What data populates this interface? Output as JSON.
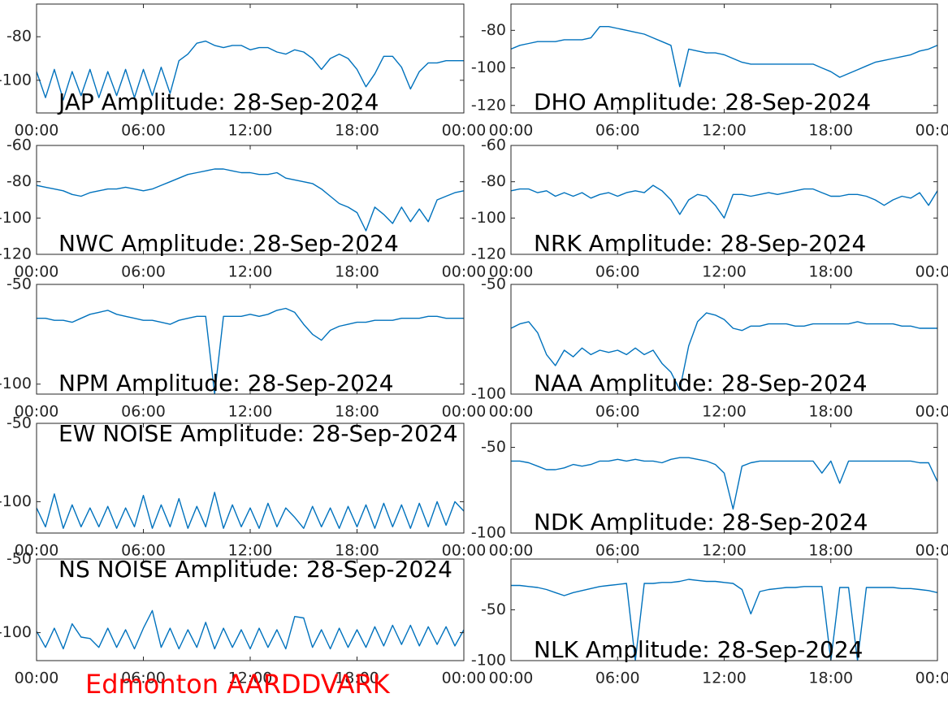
{
  "chart_data": [
    {
      "type": "line",
      "title": "JAP Amplitude: 28-Sep-2024",
      "color": "#0072bd",
      "xlim": [
        0,
        24
      ],
      "ylim": [
        -115,
        -65
      ],
      "yticks": [
        -80,
        -100
      ],
      "xticks": [
        {
          "value": 0,
          "label": "00:00"
        },
        {
          "value": 6,
          "label": "06:00"
        },
        {
          "value": 12,
          "label": "12:00"
        },
        {
          "value": 18,
          "label": "18:00"
        },
        {
          "value": 24,
          "label": "00:00"
        }
      ],
      "x": [
        0,
        0.5,
        1,
        1.5,
        2,
        2.5,
        3,
        3.5,
        4,
        4.5,
        5,
        5.5,
        6,
        6.5,
        7,
        7.5,
        8,
        8.5,
        9,
        9.5,
        10,
        10.5,
        11,
        11.5,
        12,
        12.5,
        13,
        13.5,
        14,
        14.5,
        15,
        15.5,
        16,
        16.5,
        17,
        17.5,
        18,
        18.5,
        19,
        19.5,
        20,
        20.5,
        21,
        21.5,
        22,
        22.5,
        23,
        23.5,
        24
      ],
      "values": [
        -96,
        -108,
        -95,
        -109,
        -96,
        -107,
        -95,
        -108,
        -96,
        -107,
        -95,
        -108,
        -95,
        -107,
        -94,
        -106,
        -91,
        -88,
        -83,
        -82,
        -84,
        -85,
        -84,
        -84,
        -86,
        -85,
        -85,
        -87,
        -88,
        -86,
        -87,
        -90,
        -95,
        -90,
        -88,
        -90,
        -95,
        -103,
        -97,
        -89,
        -89,
        -94,
        -104,
        -96,
        -92,
        -92,
        -91,
        -91,
        -91
      ]
    },
    {
      "type": "line",
      "title": "DHO Amplitude: 28-Sep-2024",
      "color": "#0072bd",
      "xlim": [
        0,
        24
      ],
      "ylim": [
        -124,
        -66
      ],
      "yticks": [
        -80,
        -100,
        -120
      ],
      "xticks": [
        {
          "value": 0,
          "label": "00:00"
        },
        {
          "value": 6,
          "label": "06:00"
        },
        {
          "value": 12,
          "label": "12:00"
        },
        {
          "value": 18,
          "label": "18:00"
        },
        {
          "value": 24,
          "label": "00:00"
        }
      ],
      "x": [
        0,
        0.5,
        1,
        1.5,
        2,
        2.5,
        3,
        3.5,
        4,
        4.5,
        5,
        5.5,
        6,
        6.5,
        7,
        7.5,
        8,
        8.5,
        9,
        9.5,
        10,
        10.5,
        11,
        11.5,
        12,
        12.5,
        13,
        13.5,
        14,
        14.5,
        15,
        15.5,
        16,
        16.5,
        17,
        17.5,
        18,
        18.5,
        19,
        19.5,
        20,
        20.5,
        21,
        21.5,
        22,
        22.5,
        23,
        23.5,
        24
      ],
      "values": [
        -90,
        -88,
        -87,
        -86,
        -86,
        -86,
        -85,
        -85,
        -85,
        -84,
        -78,
        -78,
        -79,
        -80,
        -81,
        -82,
        -84,
        -86,
        -88,
        -110,
        -90,
        -91,
        -92,
        -92,
        -93,
        -95,
        -97,
        -98,
        -98,
        -98,
        -98,
        -98,
        -98,
        -98,
        -98,
        -100,
        -102,
        -105,
        -103,
        -101,
        -99,
        -97,
        -96,
        -95,
        -94,
        -93,
        -91,
        -90,
        -88
      ]
    },
    {
      "type": "line",
      "title": "NWC Amplitude: 28-Sep-2024",
      "color": "#0072bd",
      "xlim": [
        0,
        24
      ],
      "ylim": [
        -120,
        -60
      ],
      "yticks": [
        -60,
        -80,
        -100,
        -120
      ],
      "xticks": [
        {
          "value": 0,
          "label": "00:00"
        },
        {
          "value": 6,
          "label": "06:00"
        },
        {
          "value": 12,
          "label": "12:00"
        },
        {
          "value": 18,
          "label": "18:00"
        },
        {
          "value": 24,
          "label": "00:00"
        }
      ],
      "x": [
        0,
        0.5,
        1,
        1.5,
        2,
        2.5,
        3,
        3.5,
        4,
        4.5,
        5,
        5.5,
        6,
        6.5,
        7,
        7.5,
        8,
        8.5,
        9,
        9.5,
        10,
        10.5,
        11,
        11.5,
        12,
        12.5,
        13,
        13.5,
        14,
        14.5,
        15,
        15.5,
        16,
        16.5,
        17,
        17.5,
        18,
        18.5,
        19,
        19.5,
        20,
        20.5,
        21,
        21.5,
        22,
        22.5,
        23,
        23.5,
        24
      ],
      "values": [
        -82,
        -83,
        -84,
        -85,
        -87,
        -88,
        -86,
        -85,
        -84,
        -84,
        -83,
        -84,
        -85,
        -84,
        -82,
        -80,
        -78,
        -76,
        -75,
        -74,
        -73,
        -73,
        -74,
        -75,
        -75,
        -76,
        -76,
        -75,
        -78,
        -79,
        -80,
        -81,
        -84,
        -88,
        -92,
        -94,
        -97,
        -107,
        -94,
        -98,
        -103,
        -94,
        -102,
        -95,
        -102,
        -90,
        -88,
        -86,
        -85
      ]
    },
    {
      "type": "line",
      "title": "NRK Amplitude: 28-Sep-2024",
      "color": "#0072bd",
      "xlim": [
        0,
        24
      ],
      "ylim": [
        -120,
        -60
      ],
      "yticks": [
        -60,
        -80,
        -100,
        -120
      ],
      "xticks": [
        {
          "value": 0,
          "label": "00:00"
        },
        {
          "value": 6,
          "label": "06:00"
        },
        {
          "value": 12,
          "label": "12:00"
        },
        {
          "value": 18,
          "label": "18:00"
        },
        {
          "value": 24,
          "label": "00:00"
        }
      ],
      "x": [
        0,
        0.5,
        1,
        1.5,
        2,
        2.5,
        3,
        3.5,
        4,
        4.5,
        5,
        5.5,
        6,
        6.5,
        7,
        7.5,
        8,
        8.5,
        9,
        9.5,
        10,
        10.5,
        11,
        11.5,
        12,
        12.5,
        13,
        13.5,
        14,
        14.5,
        15,
        15.5,
        16,
        16.5,
        17,
        17.5,
        18,
        18.5,
        19,
        19.5,
        20,
        20.5,
        21,
        21.5,
        22,
        22.5,
        23,
        23.5,
        24
      ],
      "values": [
        -85,
        -84,
        -84,
        -86,
        -85,
        -88,
        -86,
        -88,
        -86,
        -89,
        -87,
        -86,
        -88,
        -86,
        -85,
        -86,
        -82,
        -85,
        -90,
        -98,
        -90,
        -87,
        -88,
        -93,
        -100,
        -87,
        -87,
        -88,
        -87,
        -86,
        -87,
        -86,
        -85,
        -84,
        -84,
        -86,
        -88,
        -88,
        -87,
        -87,
        -88,
        -90,
        -93,
        -90,
        -88,
        -89,
        -86,
        -93,
        -85
      ]
    },
    {
      "type": "line",
      "title": "NPM Amplitude: 28-Sep-2024",
      "color": "#0072bd",
      "xlim": [
        0,
        24
      ],
      "ylim": [
        -105,
        -50
      ],
      "yticks": [
        -50,
        -100
      ],
      "xticks": [
        {
          "value": 0,
          "label": "00:00"
        },
        {
          "value": 6,
          "label": "06:00"
        },
        {
          "value": 12,
          "label": "12:00"
        },
        {
          "value": 18,
          "label": "18:00"
        },
        {
          "value": 24,
          "label": "00:00"
        }
      ],
      "x": [
        0,
        0.5,
        1,
        1.5,
        2,
        2.5,
        3,
        3.5,
        4,
        4.5,
        5,
        5.5,
        6,
        6.5,
        7,
        7.5,
        8,
        8.5,
        9,
        9.5,
        10,
        10.5,
        11,
        11.5,
        12,
        12.5,
        13,
        13.5,
        14,
        14.5,
        15,
        15.5,
        16,
        16.5,
        17,
        17.5,
        18,
        18.5,
        19,
        19.5,
        20,
        20.5,
        21,
        21.5,
        22,
        22.5,
        23,
        23.5,
        24
      ],
      "values": [
        -67,
        -67,
        -68,
        -68,
        -69,
        -67,
        -65,
        -64,
        -63,
        -65,
        -66,
        -67,
        -68,
        -68,
        -69,
        -70,
        -68,
        -67,
        -66,
        -66,
        -105,
        -66,
        -66,
        -66,
        -65,
        -66,
        -65,
        -63,
        -62,
        -64,
        -70,
        -75,
        -78,
        -73,
        -71,
        -70,
        -69,
        -69,
        -68,
        -68,
        -68,
        -67,
        -67,
        -67,
        -66,
        -66,
        -67,
        -67,
        -67
      ]
    },
    {
      "type": "line",
      "title": "NAA Amplitude: 28-Sep-2024",
      "color": "#0072bd",
      "xlim": [
        0,
        24
      ],
      "ylim": [
        -100,
        -50
      ],
      "yticks": [
        -50,
        -100
      ],
      "xticks": [
        {
          "value": 0,
          "label": "00:00"
        },
        {
          "value": 6,
          "label": "06:00"
        },
        {
          "value": 12,
          "label": "12:00"
        },
        {
          "value": 18,
          "label": "18:00"
        },
        {
          "value": 24,
          "label": "00:00"
        }
      ],
      "x": [
        0,
        0.5,
        1,
        1.5,
        2,
        2.5,
        3,
        3.5,
        4,
        4.5,
        5,
        5.5,
        6,
        6.5,
        7,
        7.5,
        8,
        8.5,
        9,
        9.5,
        10,
        10.5,
        11,
        11.5,
        12,
        12.5,
        13,
        13.5,
        14,
        14.5,
        15,
        15.5,
        16,
        16.5,
        17,
        17.5,
        18,
        18.5,
        19,
        19.5,
        20,
        20.5,
        21,
        21.5,
        22,
        22.5,
        23,
        23.5,
        24
      ],
      "values": [
        -70,
        -68,
        -67,
        -72,
        -82,
        -87,
        -80,
        -83,
        -79,
        -82,
        -80,
        -81,
        -80,
        -82,
        -79,
        -82,
        -80,
        -86,
        -90,
        -98,
        -78,
        -67,
        -63,
        -64,
        -66,
        -70,
        -71,
        -69,
        -69,
        -68,
        -68,
        -68,
        -69,
        -69,
        -68,
        -68,
        -68,
        -68,
        -68,
        -67,
        -68,
        -68,
        -68,
        -68,
        -69,
        -69,
        -70,
        -70,
        -70
      ]
    },
    {
      "type": "line",
      "title": "EW NOISE Amplitude: 28-Sep-2024",
      "color": "#0072bd",
      "xlim": [
        0,
        24
      ],
      "ylim": [
        -120,
        -50
      ],
      "yticks": [
        -50,
        -100
      ],
      "xticks": [
        {
          "value": 0,
          "label": "00:00"
        },
        {
          "value": 6,
          "label": "06:00"
        },
        {
          "value": 12,
          "label": "12:00"
        },
        {
          "value": 18,
          "label": "18:00"
        },
        {
          "value": 24,
          "label": "00:00"
        }
      ],
      "x": [
        0,
        0.5,
        1,
        1.5,
        2,
        2.5,
        3,
        3.5,
        4,
        4.5,
        5,
        5.5,
        6,
        6.5,
        7,
        7.5,
        8,
        8.5,
        9,
        9.5,
        10,
        10.5,
        11,
        11.5,
        12,
        12.5,
        13,
        13.5,
        14,
        14.5,
        15,
        15.5,
        16,
        16.5,
        17,
        17.5,
        18,
        18.5,
        19,
        19.5,
        20,
        20.5,
        21,
        21.5,
        22,
        22.5,
        23,
        23.5,
        24
      ],
      "values": [
        -104,
        -116,
        -95,
        -117,
        -102,
        -116,
        -104,
        -116,
        -103,
        -117,
        -104,
        -116,
        -96,
        -117,
        -102,
        -116,
        -98,
        -117,
        -103,
        -116,
        -94,
        -117,
        -102,
        -116,
        -104,
        -117,
        -101,
        -116,
        -104,
        -110,
        -117,
        -103,
        -116,
        -104,
        -117,
        -103,
        -116,
        -102,
        -117,
        -101,
        -116,
        -102,
        -117,
        -101,
        -116,
        -100,
        -115,
        -100,
        -106
      ]
    },
    {
      "type": "line",
      "title": "NDK Amplitude: 28-Sep-2024",
      "color": "#0072bd",
      "xlim": [
        0,
        24
      ],
      "ylim": [
        -100,
        -36
      ],
      "yticks": [
        -50,
        -100
      ],
      "xticks": [
        {
          "value": 0,
          "label": "00:00"
        },
        {
          "value": 6,
          "label": "06:00"
        },
        {
          "value": 12,
          "label": "12:00"
        },
        {
          "value": 18,
          "label": "18:00"
        },
        {
          "value": 24,
          "label": "00:00"
        }
      ],
      "x": [
        0,
        0.5,
        1,
        1.5,
        2,
        2.5,
        3,
        3.5,
        4,
        4.5,
        5,
        5.5,
        6,
        6.5,
        7,
        7.5,
        8,
        8.5,
        9,
        9.5,
        10,
        10.5,
        11,
        11.5,
        12,
        12.5,
        13,
        13.5,
        14,
        14.5,
        15,
        15.5,
        16,
        16.5,
        17,
        17.5,
        18,
        18.5,
        19,
        19.5,
        20,
        20.5,
        21,
        21.5,
        22,
        22.5,
        23,
        23.5,
        24
      ],
      "values": [
        -58,
        -58,
        -59,
        -61,
        -63,
        -63,
        -62,
        -60,
        -61,
        -60,
        -58,
        -58,
        -57,
        -58,
        -57,
        -58,
        -58,
        -59,
        -57,
        -56,
        -56,
        -57,
        -58,
        -60,
        -65,
        -86,
        -61,
        -59,
        -58,
        -58,
        -58,
        -58,
        -58,
        -58,
        -58,
        -65,
        -58,
        -71,
        -58,
        -58,
        -58,
        -58,
        -58,
        -58,
        -58,
        -58,
        -59,
        -59,
        -70
      ]
    },
    {
      "type": "line",
      "title": "NS NOISE Amplitude: 28-Sep-2024",
      "color": "#0072bd",
      "xlim": [
        0,
        24
      ],
      "ylim": [
        -119,
        -50
      ],
      "yticks": [
        -50,
        -100
      ],
      "xticks": [
        {
          "value": 0,
          "label": "00:00"
        },
        {
          "value": 6,
          "label": "06:00"
        },
        {
          "value": 12,
          "label": "12:00"
        },
        {
          "value": 18,
          "label": "18:00"
        },
        {
          "value": 24,
          "label": "00:00"
        }
      ],
      "x": [
        0,
        0.5,
        1,
        1.5,
        2,
        2.5,
        3,
        3.5,
        4,
        4.5,
        5,
        5.5,
        6,
        6.5,
        7,
        7.5,
        8,
        8.5,
        9,
        9.5,
        10,
        10.5,
        11,
        11.5,
        12,
        12.5,
        13,
        13.5,
        14,
        14.5,
        15,
        15.5,
        16,
        16.5,
        17,
        17.5,
        18,
        18.5,
        19,
        19.5,
        20,
        20.5,
        21,
        21.5,
        22,
        22.5,
        23,
        23.5,
        24
      ],
      "values": [
        -99,
        -110,
        -97,
        -111,
        -94,
        -103,
        -104,
        -110,
        -97,
        -110,
        -98,
        -111,
        -97,
        -85,
        -110,
        -97,
        -111,
        -98,
        -110,
        -93,
        -111,
        -97,
        -110,
        -98,
        -111,
        -97,
        -110,
        -98,
        -111,
        -89,
        -90,
        -110,
        -98,
        -111,
        -97,
        -110,
        -98,
        -110,
        -96,
        -109,
        -95,
        -108,
        -95,
        -109,
        -96,
        -108,
        -96,
        -109,
        -98
      ]
    },
    {
      "type": "line",
      "title": "NLK Amplitude: 28-Sep-2024",
      "color": "#0072bd",
      "xlim": [
        0,
        24
      ],
      "ylim": [
        -100,
        0
      ],
      "yticks": [
        -50,
        -100
      ],
      "xticks": [
        {
          "value": 0,
          "label": "00:00"
        },
        {
          "value": 6,
          "label": "06:00"
        },
        {
          "value": 12,
          "label": "12:00"
        },
        {
          "value": 18,
          "label": "18:00"
        },
        {
          "value": 24,
          "label": "00:00"
        }
      ],
      "x": [
        0,
        0.5,
        1,
        1.5,
        2,
        2.5,
        3,
        3.5,
        4,
        4.5,
        5,
        5.5,
        6,
        6.5,
        7,
        7.5,
        8,
        8.5,
        9,
        9.5,
        10,
        10.5,
        11,
        11.5,
        12,
        12.5,
        13,
        13.5,
        14,
        14.5,
        15,
        15.5,
        16,
        16.5,
        17,
        17.5,
        18,
        18.5,
        19,
        19.5,
        20,
        20.5,
        21,
        21.5,
        22,
        22.5,
        23,
        23.5,
        24
      ],
      "values": [
        -26,
        -26,
        -27,
        -28,
        -30,
        -33,
        -36,
        -33,
        -31,
        -29,
        -27,
        -26,
        -25,
        -24,
        -100,
        -24,
        -24,
        -23,
        -23,
        -22,
        -20,
        -21,
        -22,
        -22,
        -23,
        -24,
        -30,
        -54,
        -32,
        -30,
        -29,
        -28,
        -28,
        -27,
        -27,
        -27,
        -100,
        -28,
        -28,
        -100,
        -28,
        -28,
        -28,
        -28,
        -29,
        -29,
        -30,
        -31,
        -33
      ]
    }
  ],
  "footer": "Edmonton AARDDVARK"
}
